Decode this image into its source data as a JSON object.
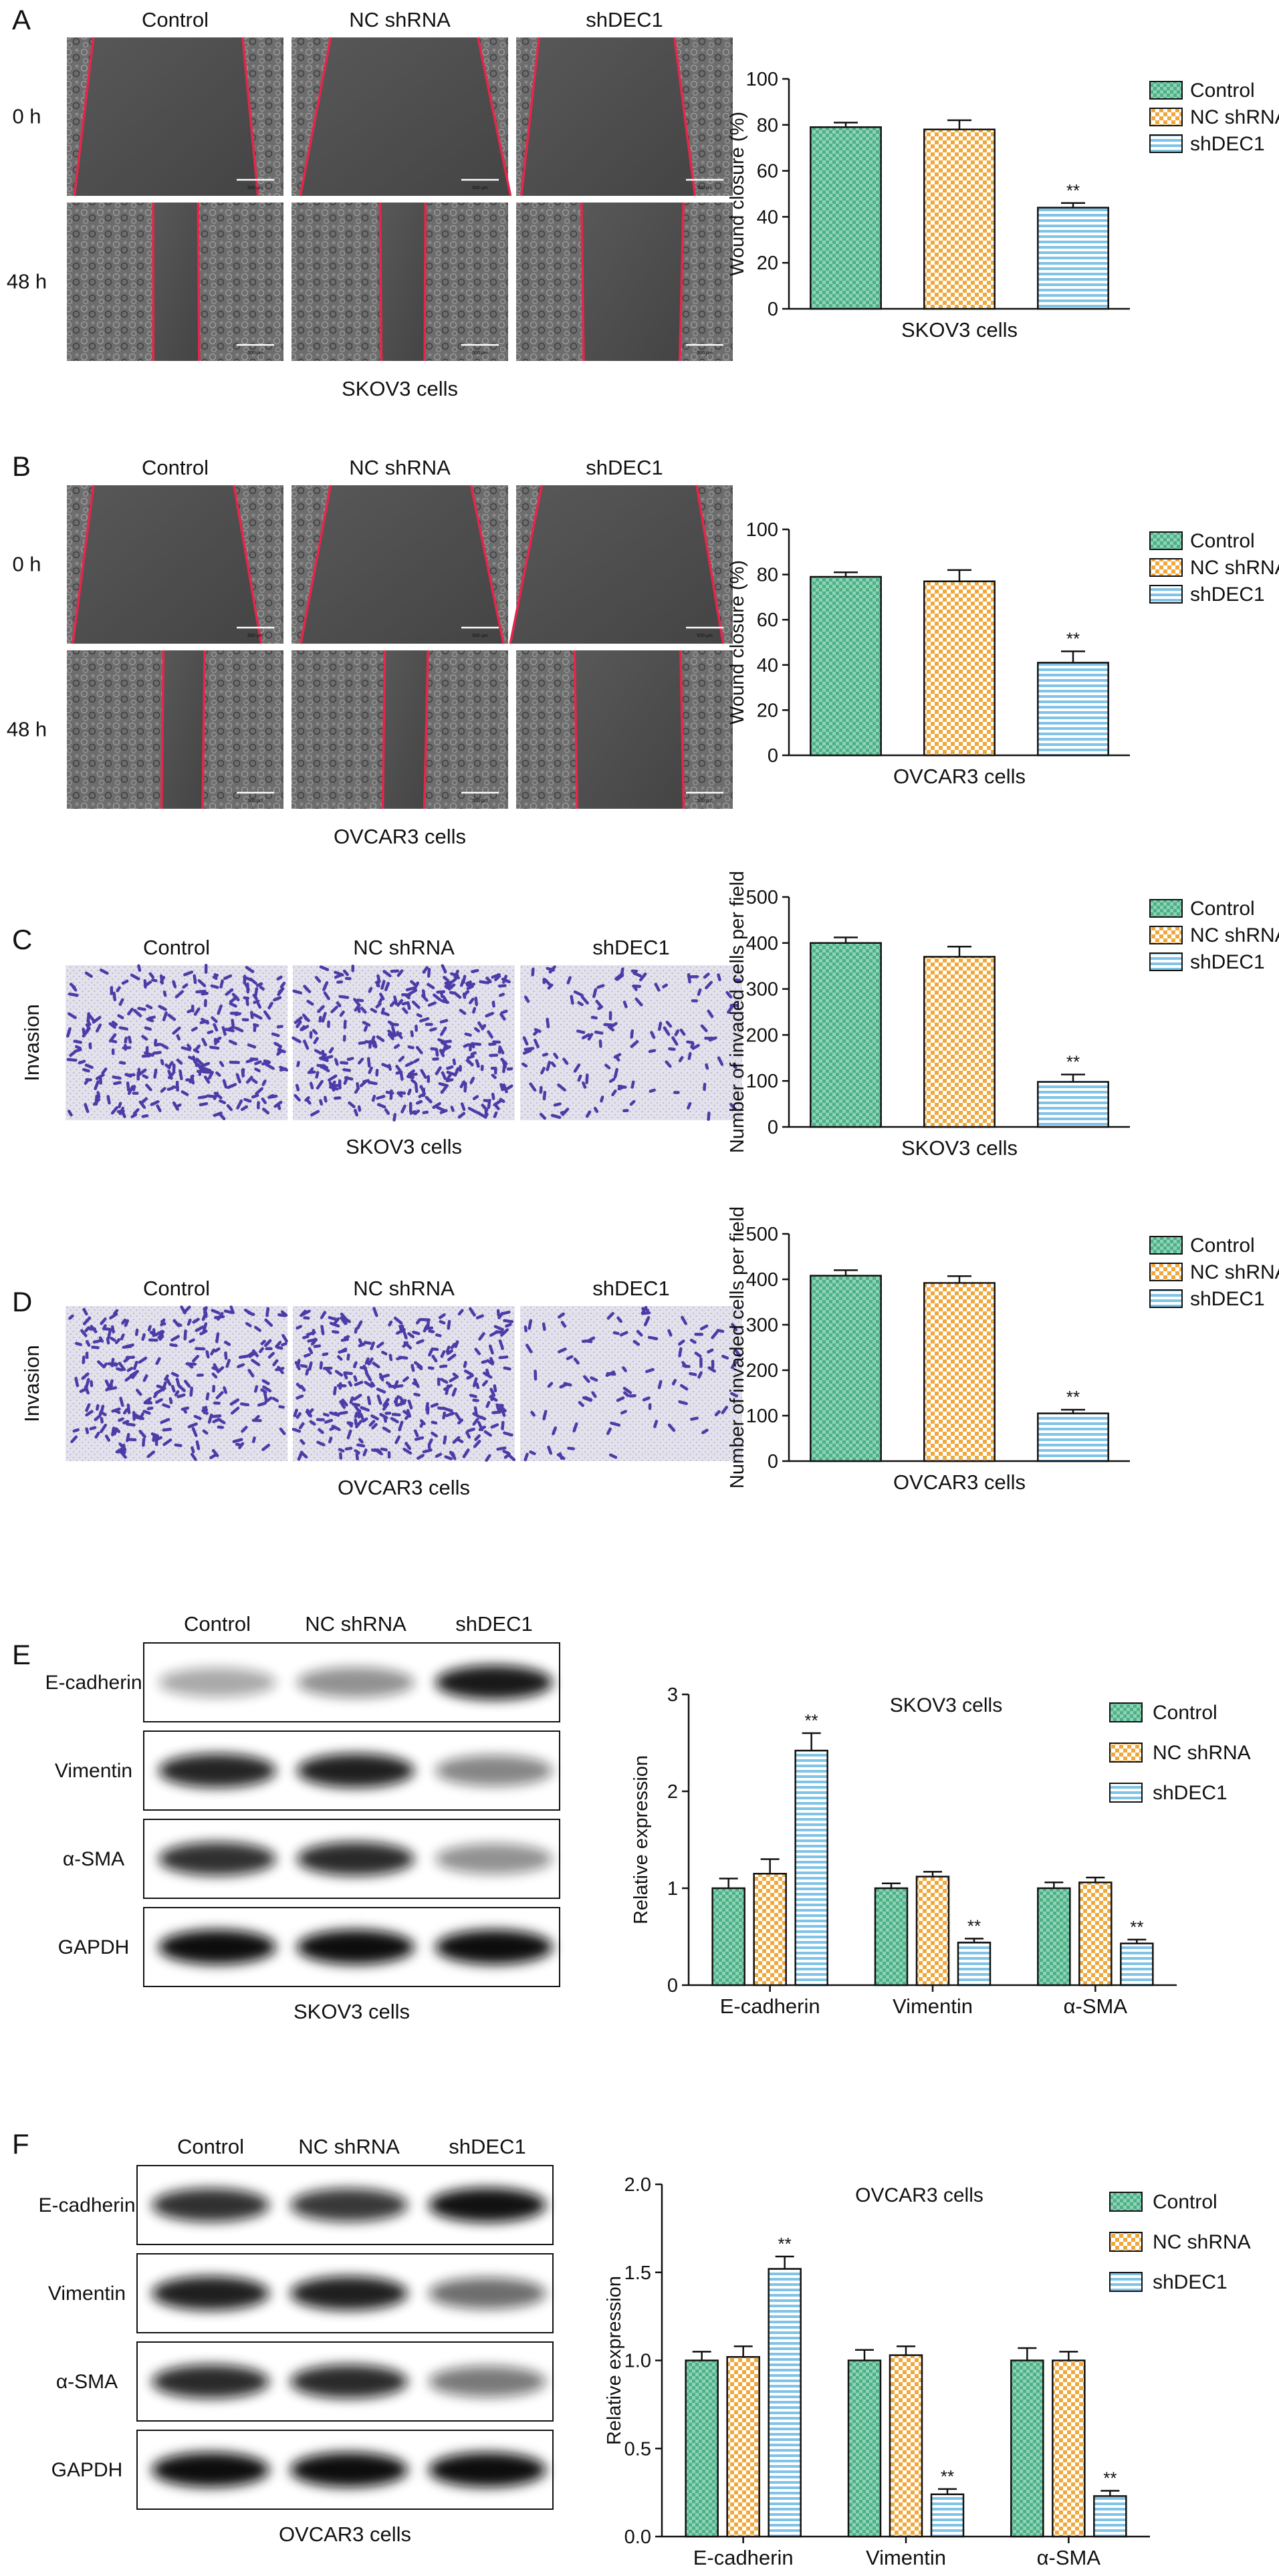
{
  "panels": {
    "A": {
      "letter": "A",
      "images": {
        "columns": [
          "Control",
          "NC shRNA",
          "shDEC1"
        ],
        "rows": [
          "0 h",
          "48 h"
        ],
        "caption": "SKOV3 cells",
        "scale_bar_text": "500 μm"
      },
      "chart_data": {
        "type": "bar",
        "categories": [
          "Control",
          "NC shRNA",
          "shDEC1"
        ],
        "values": [
          79,
          78,
          44
        ],
        "errors": [
          2,
          4,
          2
        ],
        "sig": [
          "",
          "",
          "**"
        ],
        "xlabel": "SKOV3 cells",
        "ylabel": "Wound closure (%)",
        "ylim": [
          0,
          100
        ],
        "yticks": [
          0,
          20,
          40,
          60,
          80,
          100
        ],
        "legend": [
          "Control",
          "NC shRNA",
          "shDEC1"
        ]
      }
    },
    "B": {
      "letter": "B",
      "images": {
        "columns": [
          "Control",
          "NC shRNA",
          "shDEC1"
        ],
        "rows": [
          "0 h",
          "48 h"
        ],
        "caption": "OVCAR3 cells",
        "scale_bar_text": "500 μm"
      },
      "chart_data": {
        "type": "bar",
        "categories": [
          "Control",
          "NC shRNA",
          "shDEC1"
        ],
        "values": [
          79,
          77,
          41
        ],
        "errors": [
          2,
          5,
          5
        ],
        "sig": [
          "",
          "",
          "**"
        ],
        "xlabel": "OVCAR3 cells",
        "ylabel": "Wound closure (%)",
        "ylim": [
          0,
          100
        ],
        "yticks": [
          0,
          20,
          40,
          60,
          80,
          100
        ],
        "legend": [
          "Control",
          "NC shRNA",
          "shDEC1"
        ]
      }
    },
    "C": {
      "letter": "C",
      "images": {
        "columns": [
          "Control",
          "NC shRNA",
          "shDEC1"
        ],
        "row_label": "Invasion",
        "caption": "SKOV3 cells"
      },
      "chart_data": {
        "type": "bar",
        "categories": [
          "Control",
          "NC shRNA",
          "shDEC1"
        ],
        "values": [
          400,
          370,
          98
        ],
        "errors": [
          12,
          22,
          16
        ],
        "sig": [
          "",
          "",
          "**"
        ],
        "xlabel": "SKOV3 cells",
        "ylabel": "Number of invaded cells per field",
        "ylim": [
          0,
          500
        ],
        "yticks": [
          0,
          100,
          200,
          300,
          400,
          500
        ],
        "legend": [
          "Control",
          "NC shRNA",
          "shDEC1"
        ]
      }
    },
    "D": {
      "letter": "D",
      "images": {
        "columns": [
          "Control",
          "NC shRNA",
          "shDEC1"
        ],
        "row_label": "Invasion",
        "caption": "OVCAR3 cells"
      },
      "chart_data": {
        "type": "bar",
        "categories": [
          "Control",
          "NC shRNA",
          "shDEC1"
        ],
        "values": [
          408,
          392,
          105
        ],
        "errors": [
          12,
          15,
          8
        ],
        "sig": [
          "",
          "",
          "**"
        ],
        "xlabel": "OVCAR3 cells",
        "ylabel": "Number of invaded cells per field",
        "ylim": [
          0,
          500
        ],
        "yticks": [
          0,
          100,
          200,
          300,
          400,
          500
        ],
        "legend": [
          "Control",
          "NC shRNA",
          "shDEC1"
        ]
      }
    },
    "E": {
      "letter": "E",
      "blot": {
        "columns": [
          "Control",
          "NC shRNA",
          "shDEC1"
        ],
        "rows": [
          "E-cadherin",
          "Vimentin",
          "α-SMA",
          "GAPDH"
        ],
        "intensity": [
          [
            0.35,
            0.45,
            0.95
          ],
          [
            0.9,
            0.92,
            0.5
          ],
          [
            0.85,
            0.88,
            0.45
          ],
          [
            1.0,
            1.0,
            1.0
          ]
        ],
        "caption": "SKOV3 cells"
      },
      "chart_data": {
        "type": "bar",
        "title": "SKOV3 cells",
        "categories": [
          "E-cadherin",
          "Vimentin",
          "α-SMA"
        ],
        "series": [
          {
            "name": "Control",
            "values": [
              1.0,
              1.0,
              1.0
            ],
            "errors": [
              0.1,
              0.05,
              0.06
            ]
          },
          {
            "name": "NC shRNA",
            "values": [
              1.15,
              1.12,
              1.06
            ],
            "errors": [
              0.15,
              0.05,
              0.05
            ]
          },
          {
            "name": "shDEC1",
            "values": [
              2.42,
              0.44,
              0.43
            ],
            "errors": [
              0.18,
              0.04,
              0.04
            ]
          }
        ],
        "sig": [
          [
            "",
            "",
            "**"
          ],
          [
            "",
            "",
            "**"
          ],
          [
            "",
            "",
            "**"
          ]
        ],
        "ylabel": "Relative expression",
        "ylim": [
          0,
          3
        ],
        "yticks": [
          0,
          1,
          2,
          3
        ]
      }
    },
    "F": {
      "letter": "F",
      "blot": {
        "columns": [
          "Control",
          "NC shRNA",
          "shDEC1"
        ],
        "rows": [
          "E-cadherin",
          "Vimentin",
          "α-SMA",
          "GAPDH"
        ],
        "intensity": [
          [
            0.85,
            0.82,
            0.98
          ],
          [
            0.92,
            0.92,
            0.6
          ],
          [
            0.88,
            0.88,
            0.55
          ],
          [
            1.0,
            1.0,
            1.0
          ]
        ],
        "caption": "OVCAR3 cells"
      },
      "chart_data": {
        "type": "bar",
        "title": "OVCAR3 cells",
        "categories": [
          "E-cadherin",
          "Vimentin",
          "α-SMA"
        ],
        "series": [
          {
            "name": "Control",
            "values": [
              1.0,
              1.0,
              1.0
            ],
            "errors": [
              0.05,
              0.06,
              0.07
            ]
          },
          {
            "name": "NC shRNA",
            "values": [
              1.02,
              1.03,
              1.0
            ],
            "errors": [
              0.06,
              0.05,
              0.05
            ]
          },
          {
            "name": "shDEC1",
            "values": [
              1.52,
              0.24,
              0.23
            ],
            "errors": [
              0.07,
              0.03,
              0.03
            ]
          }
        ],
        "sig": [
          [
            "",
            "",
            "**"
          ],
          [
            "",
            "",
            "**"
          ],
          [
            "",
            "",
            "**"
          ]
        ],
        "ylabel": "Relative expression",
        "ylim": [
          0,
          2.0
        ],
        "yticks": [
          0.0,
          0.5,
          1.0,
          1.5,
          2.0
        ]
      }
    }
  },
  "colors": {
    "control": "#4cb08a",
    "nc_shrna": "#f0a83c",
    "shdec1": "#7fc3e6",
    "wound_line": "#e8254a",
    "cell_stain": "#3a2aa0"
  }
}
